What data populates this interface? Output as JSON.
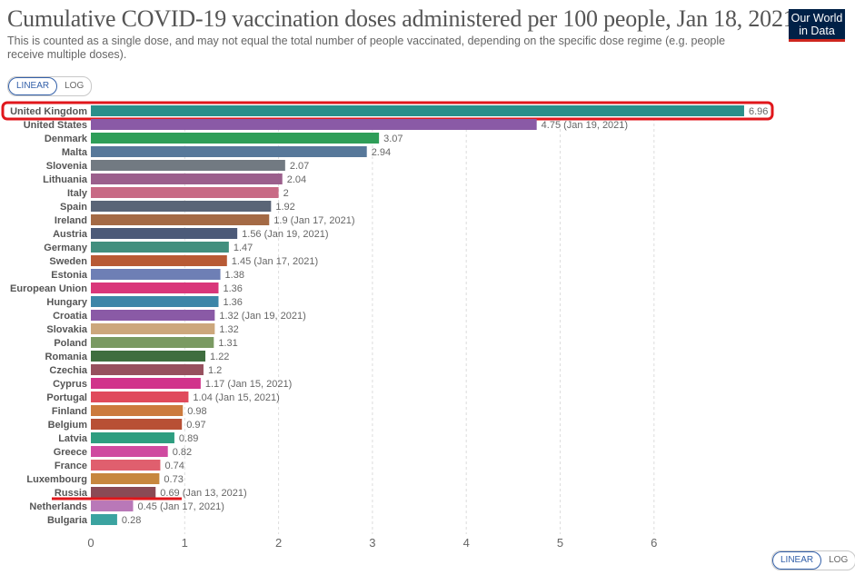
{
  "header": {
    "title": "Cumulative COVID-19 vaccination doses administered per 100 people, Jan 18, 2021",
    "subtitle": "This is counted as a single dose, and may not equal the total number of people vaccinated, depending on the specific dose regime (e.g. people receive multiple doses).",
    "logo_line1": "Our World",
    "logo_line2": "in Data"
  },
  "controls": {
    "linear_label": "LINEAR",
    "log_label": "LOG",
    "selected": "LINEAR"
  },
  "highlight_color": "#e0161b",
  "chart_data": {
    "type": "bar",
    "orientation": "horizontal",
    "xlim": [
      0,
      7
    ],
    "xticks": [
      0,
      1,
      2,
      3,
      4,
      5,
      6
    ],
    "grid": true,
    "categories": [
      "United Kingdom",
      "United States",
      "Denmark",
      "Malta",
      "Slovenia",
      "Lithuania",
      "Italy",
      "Spain",
      "Ireland",
      "Austria",
      "Germany",
      "Sweden",
      "Estonia",
      "European Union",
      "Hungary",
      "Croatia",
      "Slovakia",
      "Poland",
      "Romania",
      "Czechia",
      "Cyprus",
      "Portugal",
      "Finland",
      "Belgium",
      "Latvia",
      "Greece",
      "France",
      "Luxembourg",
      "Russia",
      "Netherlands",
      "Bulgaria"
    ],
    "values": [
      6.96,
      4.75,
      3.07,
      2.94,
      2.07,
      2.04,
      2,
      1.92,
      1.9,
      1.56,
      1.47,
      1.45,
      1.38,
      1.36,
      1.36,
      1.32,
      1.32,
      1.31,
      1.22,
      1.2,
      1.17,
      1.04,
      0.98,
      0.97,
      0.89,
      0.82,
      0.74,
      0.73,
      0.69,
      0.45,
      0.28
    ],
    "value_labels": [
      "6.96",
      "4.75 (Jan 19, 2021)",
      "3.07",
      "2.94",
      "2.07",
      "2.04",
      "2",
      "1.92",
      "1.9 (Jan 17, 2021)",
      "1.56 (Jan 19, 2021)",
      "1.47",
      "1.45 (Jan 17, 2021)",
      "1.38",
      "1.36",
      "1.36",
      "1.32 (Jan 19, 2021)",
      "1.32",
      "1.31",
      "1.22",
      "1.2",
      "1.17 (Jan 15, 2021)",
      "1.04 (Jan 15, 2021)",
      "0.98",
      "0.97",
      "0.89",
      "0.82",
      "0.74",
      "0.73",
      "0.69 (Jan 13, 2021)",
      "0.45 (Jan 17, 2021)",
      "0.28"
    ],
    "colors": [
      "#2a8f8a",
      "#8a5aa6",
      "#2e9e58",
      "#57789a",
      "#727a82",
      "#9b5f8c",
      "#c86a85",
      "#5a6577",
      "#a46a45",
      "#4c5a78",
      "#428f7e",
      "#b85a35",
      "#6e7fb5",
      "#d9367a",
      "#3d86a8",
      "#8a5aa6",
      "#cca77c",
      "#7a9a62",
      "#3f6e3f",
      "#97505e",
      "#d1338b",
      "#e04a5c",
      "#cc7a3d",
      "#b85035",
      "#2e9e80",
      "#cf4aa0",
      "#e05f6e",
      "#c7873e",
      "#8a4a55",
      "#b978b8",
      "#3ba3a0"
    ],
    "highlighted": [
      "United Kingdom"
    ],
    "underlined": [
      "Russia"
    ]
  }
}
